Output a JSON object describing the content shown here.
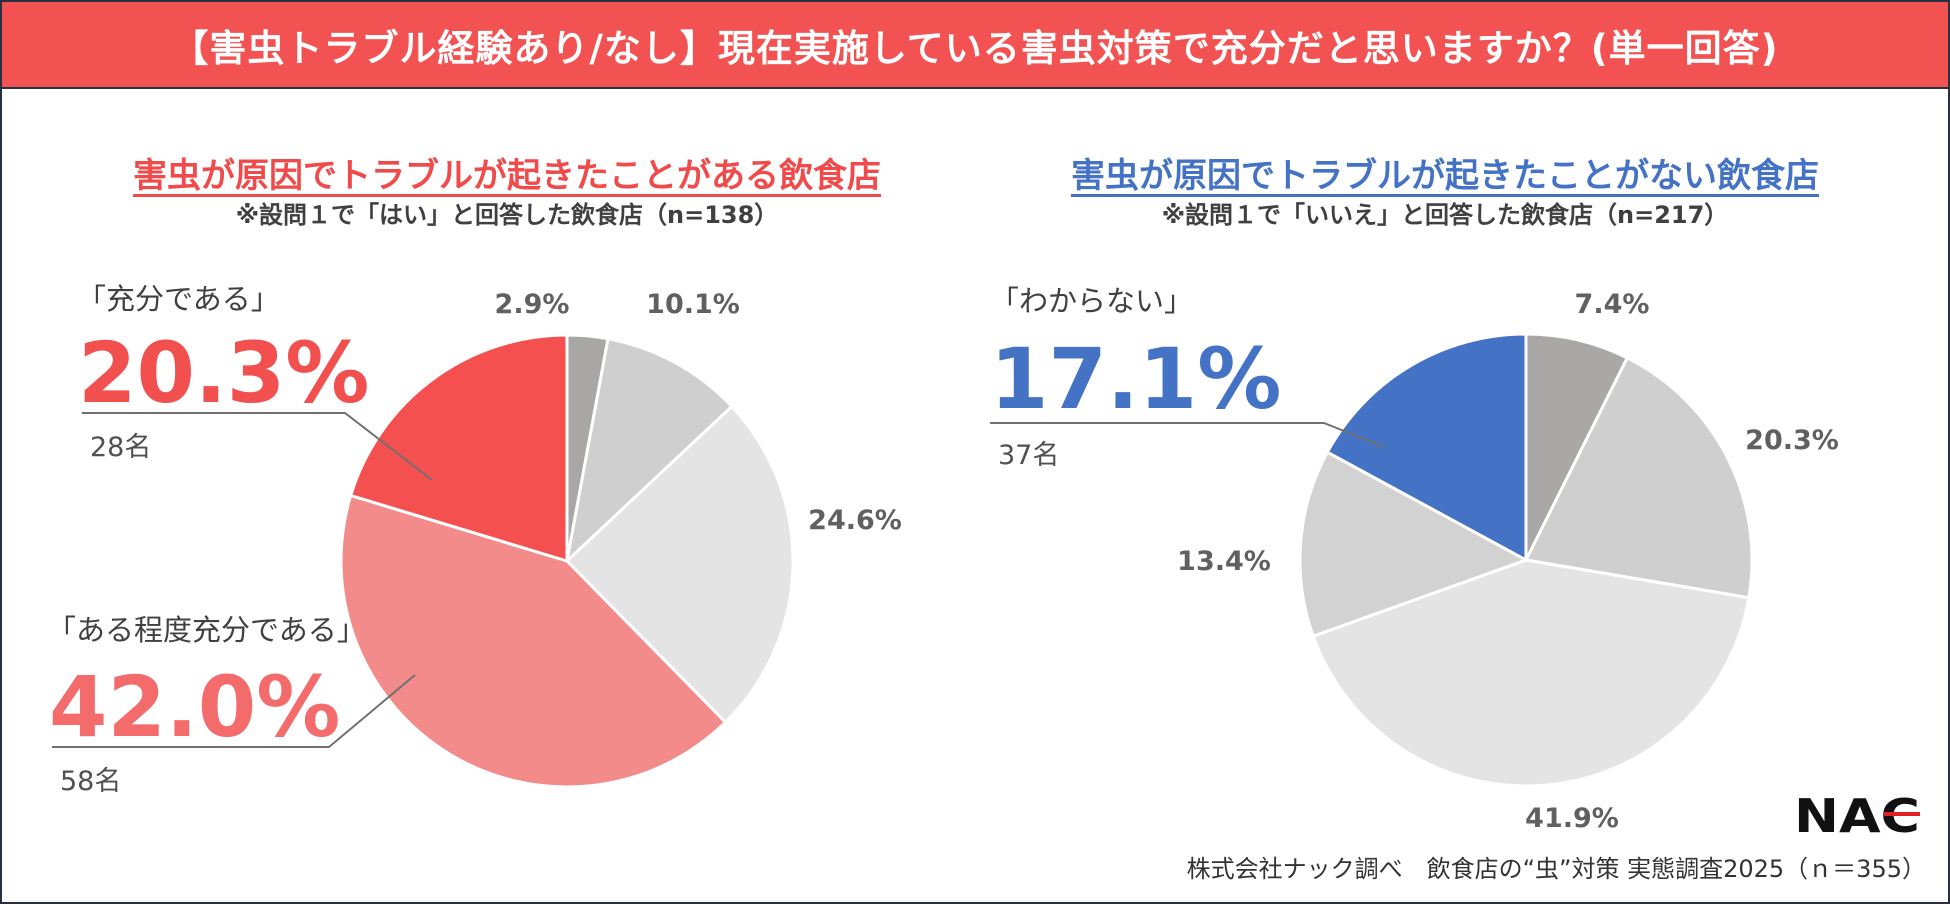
{
  "header": {
    "title": "【害虫トラブル経験あり/なし】現在実施している害虫対策で充分だと思いますか？(単一回答)"
  },
  "chart_data": [
    {
      "type": "pie",
      "title": "害虫が原因でトラブルが起きたことがある飲食店",
      "subtitle": "※設問１で「はい」と回答した飲食店（n=138）",
      "title_color": "#f04a4a",
      "slices": [
        {
          "label": "2.9%",
          "value": 2.9,
          "color": "#a9a6a6"
        },
        {
          "label": "10.1%",
          "value": 10.1,
          "color": "#cfcfcf"
        },
        {
          "label": "24.6%",
          "value": 24.6,
          "color": "#e4e4e4"
        },
        {
          "label": "42.0%",
          "value": 42.0,
          "color": "#f48b8b"
        },
        {
          "label": "20.3%",
          "value": 20.3,
          "color": "#f55050"
        }
      ],
      "callouts": [
        {
          "name": "jubun",
          "category": "「充分である」",
          "percent": "20.3%",
          "count": "28名",
          "color": "#f24f4f"
        },
        {
          "name": "aru-teido",
          "category": "「ある程度充分である」",
          "percent": "42.0%",
          "count": "58名",
          "color": "#f36b6b"
        }
      ]
    },
    {
      "type": "pie",
      "title": "害虫が原因でトラブルが起きたことがない飲食店",
      "subtitle": "※設問１で「いいえ」と回答した飲食店（n=217）",
      "title_color": "#4472c4",
      "slices": [
        {
          "label": "7.4%",
          "value": 7.4,
          "color": "#aaa7a7"
        },
        {
          "label": "20.3%",
          "value": 20.3,
          "color": "#cfcfcf"
        },
        {
          "label": "41.9%",
          "value": 41.9,
          "color": "#e4e4e4"
        },
        {
          "label": "13.4%",
          "value": 13.4,
          "color": "#d2d2d2"
        },
        {
          "label": "17.1%",
          "value": 17.1,
          "color": "#4472c4"
        }
      ],
      "callouts": [
        {
          "name": "wakaranai",
          "category": "「わからない」",
          "percent": "17.1%",
          "count": "37名",
          "color": "#4472c4"
        }
      ]
    }
  ],
  "footer": {
    "source": "株式会社ナック調べ　飲食店の“虫”対策 実態調査2025（ｎ＝355）"
  },
  "logo": {
    "text": "NAC"
  }
}
